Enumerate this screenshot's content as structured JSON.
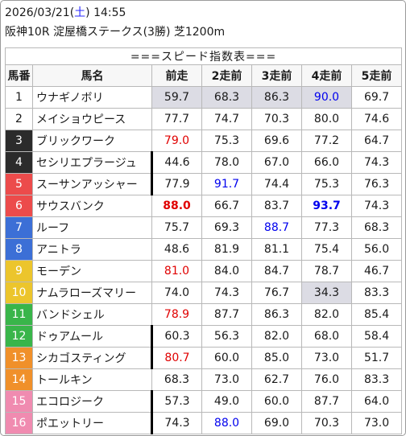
{
  "header": {
    "date": "2026/03/21",
    "day_open": "(",
    "day": "土",
    "day_close": ")",
    "time": "14:55",
    "race": "阪神10R 淀屋橋ステークス(3勝) 芝1200m"
  },
  "table": {
    "title": "===スピード指数表===",
    "columns": [
      "馬番",
      "馬名",
      "前走",
      "2走前",
      "3走前",
      "4走前",
      "5走前"
    ],
    "rows": [
      {
        "num": "1",
        "name": "ウナギノボリ",
        "bg": "#ffffff",
        "fg": "#1a1a1a",
        "divider": false,
        "vals": [
          {
            "v": "59.7",
            "c": "",
            "hl": true
          },
          {
            "v": "68.3",
            "c": "",
            "hl": true
          },
          {
            "v": "86.3",
            "c": "",
            "hl": true
          },
          {
            "v": "90.0",
            "c": "blue",
            "hl": true
          },
          {
            "v": "69.7",
            "c": "",
            "hl": false
          }
        ]
      },
      {
        "num": "2",
        "name": "メイショウピース",
        "bg": "#ffffff",
        "fg": "#1a1a1a",
        "divider": false,
        "vals": [
          {
            "v": "77.7",
            "c": "",
            "hl": false
          },
          {
            "v": "74.7",
            "c": "",
            "hl": false
          },
          {
            "v": "70.3",
            "c": "",
            "hl": false
          },
          {
            "v": "80.0",
            "c": "",
            "hl": false
          },
          {
            "v": "74.6",
            "c": "",
            "hl": false
          }
        ]
      },
      {
        "num": "3",
        "name": "ブリックワーク",
        "bg": "#2b2b2b",
        "fg": "#ffffff",
        "divider": false,
        "vals": [
          {
            "v": "79.0",
            "c": "red",
            "hl": false
          },
          {
            "v": "75.3",
            "c": "",
            "hl": false
          },
          {
            "v": "69.6",
            "c": "",
            "hl": false
          },
          {
            "v": "77.2",
            "c": "",
            "hl": false
          },
          {
            "v": "64.7",
            "c": "",
            "hl": false
          }
        ]
      },
      {
        "num": "4",
        "name": "セシリエプラージュ",
        "bg": "#2b2b2b",
        "fg": "#ffffff",
        "divider": true,
        "vals": [
          {
            "v": "44.6",
            "c": "",
            "hl": false
          },
          {
            "v": "78.0",
            "c": "",
            "hl": false
          },
          {
            "v": "67.0",
            "c": "",
            "hl": false
          },
          {
            "v": "66.0",
            "c": "",
            "hl": false
          },
          {
            "v": "74.3",
            "c": "",
            "hl": false
          }
        ]
      },
      {
        "num": "5",
        "name": "スーサンアッシャー",
        "bg": "#ec4b4b",
        "fg": "#ffffff",
        "divider": true,
        "vals": [
          {
            "v": "77.9",
            "c": "",
            "hl": false
          },
          {
            "v": "91.7",
            "c": "blue",
            "hl": false
          },
          {
            "v": "74.4",
            "c": "",
            "hl": false
          },
          {
            "v": "75.3",
            "c": "",
            "hl": false
          },
          {
            "v": "76.3",
            "c": "",
            "hl": false
          }
        ]
      },
      {
        "num": "6",
        "name": "サウスバンク",
        "bg": "#ec4b4b",
        "fg": "#ffffff",
        "divider": false,
        "vals": [
          {
            "v": "88.0",
            "c": "red bold",
            "hl": false
          },
          {
            "v": "66.7",
            "c": "",
            "hl": false
          },
          {
            "v": "83.7",
            "c": "",
            "hl": false
          },
          {
            "v": "93.7",
            "c": "blue bold",
            "hl": false
          },
          {
            "v": "74.3",
            "c": "",
            "hl": false
          }
        ]
      },
      {
        "num": "7",
        "name": "ルーフ",
        "bg": "#3c6fd6",
        "fg": "#ffffff",
        "divider": false,
        "vals": [
          {
            "v": "75.7",
            "c": "",
            "hl": false
          },
          {
            "v": "69.3",
            "c": "",
            "hl": false
          },
          {
            "v": "88.7",
            "c": "blue",
            "hl": false
          },
          {
            "v": "77.3",
            "c": "",
            "hl": false
          },
          {
            "v": "68.3",
            "c": "",
            "hl": false
          }
        ]
      },
      {
        "num": "8",
        "name": "アニトラ",
        "bg": "#3c6fd6",
        "fg": "#ffffff",
        "divider": false,
        "vals": [
          {
            "v": "48.6",
            "c": "",
            "hl": false
          },
          {
            "v": "81.9",
            "c": "",
            "hl": false
          },
          {
            "v": "81.1",
            "c": "",
            "hl": false
          },
          {
            "v": "75.4",
            "c": "",
            "hl": false
          },
          {
            "v": "56.0",
            "c": "",
            "hl": false
          }
        ]
      },
      {
        "num": "9",
        "name": "モーデン",
        "bg": "#ecc52c",
        "fg": "#ffffff",
        "divider": false,
        "vals": [
          {
            "v": "81.0",
            "c": "red",
            "hl": false
          },
          {
            "v": "84.0",
            "c": "",
            "hl": false
          },
          {
            "v": "84.7",
            "c": "",
            "hl": false
          },
          {
            "v": "78.7",
            "c": "",
            "hl": false
          },
          {
            "v": "46.7",
            "c": "",
            "hl": false
          }
        ]
      },
      {
        "num": "10",
        "name": "ナムラローズマリー",
        "bg": "#ecc52c",
        "fg": "#ffffff",
        "divider": false,
        "vals": [
          {
            "v": "74.0",
            "c": "",
            "hl": false
          },
          {
            "v": "74.3",
            "c": "",
            "hl": false
          },
          {
            "v": "76.7",
            "c": "",
            "hl": false
          },
          {
            "v": "34.3",
            "c": "",
            "hl": true
          },
          {
            "v": "83.3",
            "c": "",
            "hl": false
          }
        ]
      },
      {
        "num": "11",
        "name": "バンドシェル",
        "bg": "#39b54a",
        "fg": "#ffffff",
        "divider": false,
        "vals": [
          {
            "v": "78.9",
            "c": "red",
            "hl": false
          },
          {
            "v": "87.7",
            "c": "",
            "hl": false
          },
          {
            "v": "86.3",
            "c": "",
            "hl": false
          },
          {
            "v": "82.0",
            "c": "",
            "hl": false
          },
          {
            "v": "85.4",
            "c": "",
            "hl": false
          }
        ]
      },
      {
        "num": "12",
        "name": "ドゥアムール",
        "bg": "#39b54a",
        "fg": "#ffffff",
        "divider": true,
        "vals": [
          {
            "v": "60.3",
            "c": "",
            "hl": false
          },
          {
            "v": "56.3",
            "c": "",
            "hl": false
          },
          {
            "v": "82.0",
            "c": "",
            "hl": false
          },
          {
            "v": "68.0",
            "c": "",
            "hl": false
          },
          {
            "v": "58.4",
            "c": "",
            "hl": false
          }
        ]
      },
      {
        "num": "13",
        "name": "シカゴスティング",
        "bg": "#f0902a",
        "fg": "#ffffff",
        "divider": true,
        "vals": [
          {
            "v": "80.7",
            "c": "red",
            "hl": false
          },
          {
            "v": "60.0",
            "c": "",
            "hl": false
          },
          {
            "v": "85.0",
            "c": "",
            "hl": false
          },
          {
            "v": "73.0",
            "c": "",
            "hl": false
          },
          {
            "v": "51.7",
            "c": "",
            "hl": false
          }
        ]
      },
      {
        "num": "14",
        "name": "トールキン",
        "bg": "#f0902a",
        "fg": "#ffffff",
        "divider": false,
        "vals": [
          {
            "v": "68.3",
            "c": "",
            "hl": false
          },
          {
            "v": "73.0",
            "c": "",
            "hl": false
          },
          {
            "v": "62.7",
            "c": "",
            "hl": false
          },
          {
            "v": "76.0",
            "c": "",
            "hl": false
          },
          {
            "v": "83.3",
            "c": "",
            "hl": false
          }
        ]
      },
      {
        "num": "15",
        "name": "エコロジーク",
        "bg": "#f08bb0",
        "fg": "#ffffff",
        "divider": true,
        "vals": [
          {
            "v": "57.3",
            "c": "",
            "hl": false
          },
          {
            "v": "49.0",
            "c": "",
            "hl": false
          },
          {
            "v": "60.0",
            "c": "",
            "hl": false
          },
          {
            "v": "87.7",
            "c": "",
            "hl": false
          },
          {
            "v": "64.0",
            "c": "",
            "hl": false
          }
        ]
      },
      {
        "num": "16",
        "name": "ポエットリー",
        "bg": "#f08bb0",
        "fg": "#ffffff",
        "divider": true,
        "vals": [
          {
            "v": "74.3",
            "c": "",
            "hl": false
          },
          {
            "v": "88.0",
            "c": "blue",
            "hl": false
          },
          {
            "v": "69.0",
            "c": "",
            "hl": false
          },
          {
            "v": "70.3",
            "c": "",
            "hl": false
          },
          {
            "v": "73.0",
            "c": "",
            "hl": false
          }
        ]
      }
    ]
  },
  "colors": {
    "red_value": "#e00000",
    "blue_value": "#0000ee",
    "highlight": "#dcdce4"
  }
}
